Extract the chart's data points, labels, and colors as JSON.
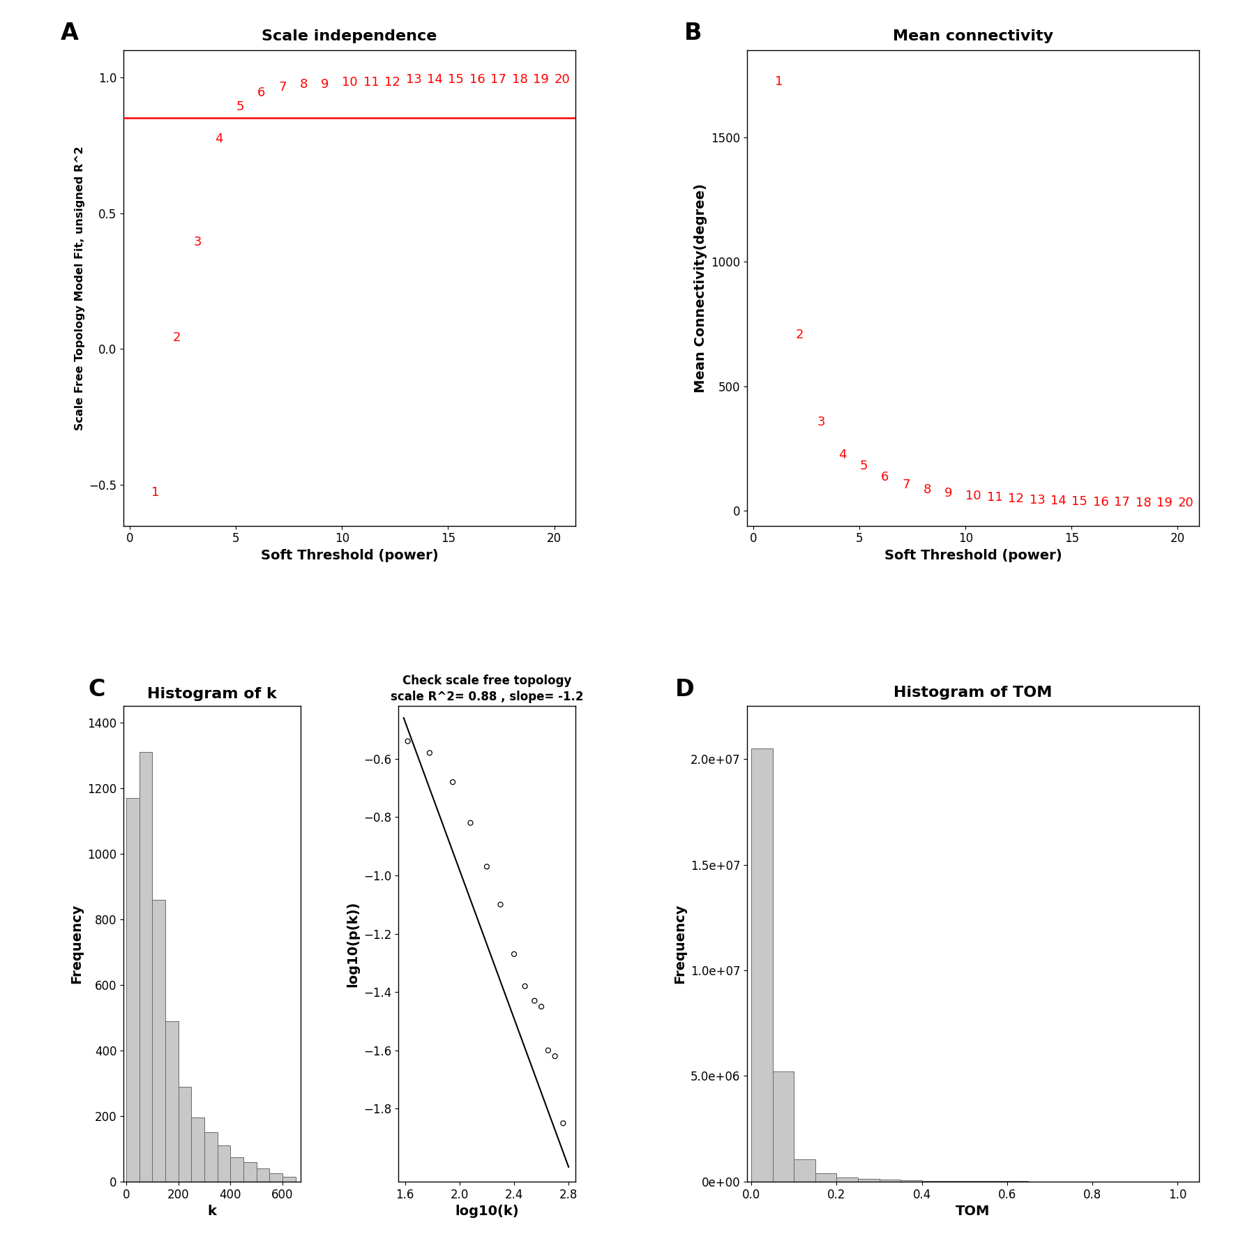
{
  "panel_A": {
    "title": "Scale independence",
    "xlabel": "Soft Threshold (power)",
    "ylabel": "Scale Free Topology Model Fit, unsigned R^2",
    "x": [
      1,
      2,
      3,
      4,
      5,
      6,
      7,
      8,
      9,
      10,
      11,
      12,
      13,
      14,
      15,
      16,
      17,
      18,
      19,
      20
    ],
    "y": [
      -0.55,
      0.02,
      0.37,
      0.75,
      0.87,
      0.92,
      0.94,
      0.95,
      0.95,
      0.96,
      0.96,
      0.96,
      0.97,
      0.97,
      0.97,
      0.97,
      0.97,
      0.97,
      0.97,
      0.97
    ],
    "hline": 0.85,
    "ylim": [
      -0.65,
      1.1
    ],
    "xlim": [
      -0.3,
      21
    ],
    "xticks": [
      0,
      5,
      10,
      15,
      20
    ],
    "yticks": [
      -0.5,
      0.0,
      0.5,
      1.0
    ]
  },
  "panel_B": {
    "title": "Mean connectivity",
    "xlabel": "Soft Threshold (power)",
    "ylabel": "Mean Connectivity(degree)",
    "x": [
      1,
      2,
      3,
      4,
      5,
      6,
      7,
      8,
      9,
      10,
      11,
      12,
      13,
      14,
      15,
      16,
      17,
      18,
      19,
      20
    ],
    "y": [
      1700,
      680,
      330,
      200,
      155,
      110,
      80,
      60,
      45,
      35,
      28,
      22,
      18,
      15,
      12,
      10,
      8,
      7,
      6,
      5
    ],
    "ylim": [
      -60,
      1850
    ],
    "xlim": [
      -0.3,
      21
    ],
    "xticks": [
      0,
      5,
      10,
      15,
      20
    ],
    "yticks": [
      0,
      500,
      1000,
      1500
    ]
  },
  "panel_C_hist": {
    "title": "Histogram of k",
    "xlabel": "k",
    "ylabel": "Frequency",
    "bin_edges": [
      0,
      50,
      100,
      150,
      200,
      250,
      300,
      350,
      400,
      450,
      500,
      550,
      600,
      650
    ],
    "counts": [
      1170,
      1310,
      860,
      490,
      290,
      195,
      150,
      110,
      75,
      60,
      40,
      25,
      15
    ],
    "xlim": [
      -10,
      670
    ],
    "ylim": [
      0,
      1450
    ],
    "xticks": [
      0,
      200,
      400,
      600
    ],
    "yticks": [
      0,
      200,
      400,
      600,
      800,
      1000,
      1200,
      1400
    ]
  },
  "panel_C_scatter": {
    "title": "Check scale free topology\nscale R^2= 0.88 , slope= -1.2",
    "xlabel": "log10(k)",
    "ylabel": "log10(p(k))",
    "x": [
      1.62,
      1.78,
      1.95,
      2.08,
      2.2,
      2.3,
      2.4,
      2.48,
      2.55,
      2.6,
      2.65,
      2.7,
      2.76
    ],
    "y": [
      -0.54,
      -0.58,
      -0.68,
      -0.82,
      -0.97,
      -1.1,
      -1.27,
      -1.38,
      -1.43,
      -1.45,
      -1.6,
      -1.62,
      -1.85
    ],
    "line_x": [
      1.59,
      2.8
    ],
    "line_y": [
      -0.46,
      -2.0
    ],
    "ylim": [
      -2.05,
      -0.42
    ],
    "xlim": [
      1.55,
      2.85
    ],
    "xticks": [
      1.6,
      2.0,
      2.4,
      2.8
    ],
    "yticks": [
      -1.8,
      -1.6,
      -1.4,
      -1.2,
      -1.0,
      -0.8,
      -0.6
    ]
  },
  "panel_D": {
    "title": "Histogram of TOM",
    "xlabel": "TOM",
    "ylabel": "Frequency",
    "bin_edges": [
      0.0,
      0.05,
      0.1,
      0.15,
      0.2,
      0.25,
      0.3,
      0.35,
      0.4,
      0.45,
      0.5,
      0.55,
      0.6,
      0.65,
      0.7,
      0.75,
      0.8,
      0.85,
      0.9,
      0.95,
      1.0
    ],
    "counts": [
      20500000.0,
      5200000.0,
      1050000.0,
      400000.0,
      200000.0,
      130000.0,
      90000.0,
      60000.0,
      40000.0,
      30000.0,
      25000.0,
      20000.0,
      15000.0,
      12000.0,
      10000.0,
      8500.0,
      7500.0,
      6500.0,
      5500.0,
      5000.0
    ],
    "xlim": [
      -0.01,
      1.05
    ],
    "ylim": [
      0,
      22500000.0
    ],
    "xticks": [
      0.0,
      0.2,
      0.4,
      0.6,
      0.8,
      1.0
    ],
    "yticks": [
      0,
      5000000.0,
      10000000.0,
      15000000.0,
      20000000.0
    ]
  },
  "label_color": "#FF0000",
  "bar_color": "#C8C8C8",
  "bar_edgecolor": "#696969"
}
